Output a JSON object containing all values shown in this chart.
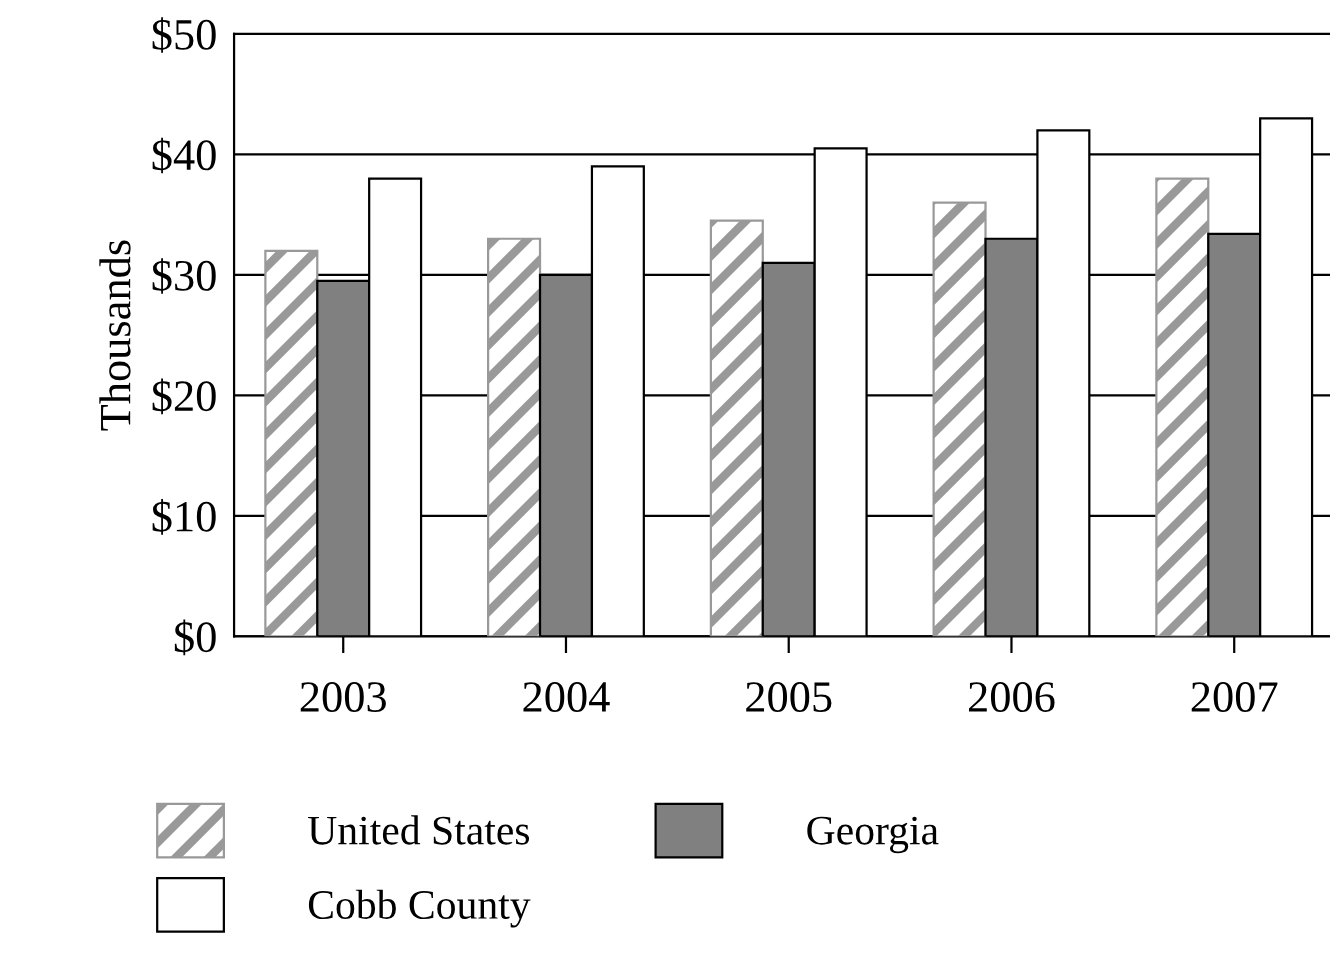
{
  "chart_data": {
    "type": "bar",
    "ylabel": "Thousands",
    "categories": [
      "2003",
      "2004",
      "2005",
      "2006",
      "2007"
    ],
    "series": [
      {
        "name": "United States",
        "color": "#999999",
        "values": [
          32,
          33,
          34.5,
          36,
          38
        ]
      },
      {
        "name": "Georgia",
        "color": "#808080",
        "values": [
          29.5,
          30,
          31,
          33,
          33.4
        ]
      },
      {
        "name": "Cobb County",
        "color": "#ffffff",
        "values": [
          38,
          39,
          40.5,
          42,
          43
        ]
      }
    ],
    "ylim": [
      0,
      50
    ],
    "yticks": [
      {
        "value": 0,
        "label": "$0"
      },
      {
        "value": 10,
        "label": "$10"
      },
      {
        "value": 20,
        "label": "$20"
      },
      {
        "value": 30,
        "label": "$30"
      },
      {
        "value": 40,
        "label": "$40"
      },
      {
        "value": 50,
        "label": "$50"
      }
    ],
    "grid": "y",
    "legend": "bottom"
  }
}
